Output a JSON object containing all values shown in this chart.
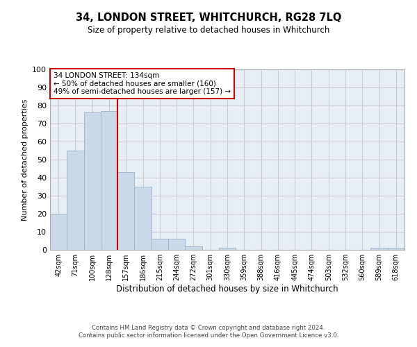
{
  "title": "34, LONDON STREET, WHITCHURCH, RG28 7LQ",
  "subtitle": "Size of property relative to detached houses in Whitchurch",
  "xlabel": "Distribution of detached houses by size in Whitchurch",
  "ylabel": "Number of detached properties",
  "bar_labels": [
    "42sqm",
    "71sqm",
    "100sqm",
    "128sqm",
    "157sqm",
    "186sqm",
    "215sqm",
    "244sqm",
    "272sqm",
    "301sqm",
    "330sqm",
    "359sqm",
    "388sqm",
    "416sqm",
    "445sqm",
    "474sqm",
    "503sqm",
    "532sqm",
    "560sqm",
    "589sqm",
    "618sqm"
  ],
  "bar_values": [
    20,
    55,
    76,
    77,
    43,
    35,
    6,
    6,
    2,
    0,
    1,
    0,
    0,
    0,
    0,
    0,
    0,
    0,
    0,
    1,
    1
  ],
  "bar_color": "#c9d9e8",
  "bar_edgecolor": "#a0b8cc",
  "grid_color": "#cccccc",
  "bg_color": "#e8eef5",
  "vline_x": 3.5,
  "vline_color": "#cc0000",
  "annotation_text": "34 LONDON STREET: 134sqm\n← 50% of detached houses are smaller (160)\n49% of semi-detached houses are larger (157) →",
  "annotation_box_color": "#ffffff",
  "annotation_box_edgecolor": "#cc0000",
  "footer_line1": "Contains HM Land Registry data © Crown copyright and database right 2024.",
  "footer_line2": "Contains public sector information licensed under the Open Government Licence v3.0.",
  "ylim": [
    0,
    100
  ],
  "yticks": [
    0,
    10,
    20,
    30,
    40,
    50,
    60,
    70,
    80,
    90,
    100
  ]
}
